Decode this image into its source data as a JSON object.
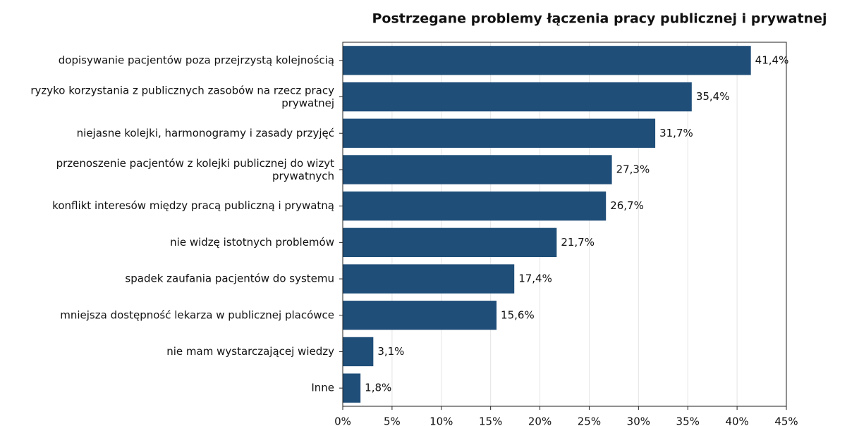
{
  "chart_data": {
    "type": "barh",
    "title": "Postrzegane problemy łączenia pracy publicznej i prywatnej",
    "categories": [
      "dopisywanie pacjentów poza przejrzystą kolejnością",
      "ryzyko korzystania z publicznych zasobów na rzecz pracy\nprywatnej",
      "niejasne kolejki, harmonogramy i zasady przyjęć",
      "przenoszenie pacjentów z kolejki publicznej do wizyt\nprywatnych",
      "konflikt interesów między pracą publiczną i prywatną",
      "nie widzę istotnych problemów",
      "spadek zaufania pacjentów do systemu",
      "mniejsza dostępność lekarza w publicznej placówce",
      "nie mam wystarczającej wiedzy",
      "Inne"
    ],
    "values": [
      41.4,
      35.4,
      31.7,
      27.3,
      26.7,
      21.7,
      17.4,
      15.6,
      3.1,
      1.8
    ],
    "value_labels": [
      "41,4%",
      "35,4%",
      "31,7%",
      "27,3%",
      "26,7%",
      "21,7%",
      "17,4%",
      "15,6%",
      "3,1%",
      "1,8%"
    ],
    "color": "#1f4e79",
    "xlim": [
      0,
      45
    ],
    "xticks": [
      {
        "value": 0,
        "label": "0%"
      },
      {
        "value": 5,
        "label": "5%"
      },
      {
        "value": 10,
        "label": "10%"
      },
      {
        "value": 15,
        "label": "15%"
      },
      {
        "value": 20,
        "label": "20%"
      },
      {
        "value": 25,
        "label": "25%"
      },
      {
        "value": 30,
        "label": "30%"
      },
      {
        "value": 35,
        "label": "35%"
      },
      {
        "value": 40,
        "label": "40%"
      },
      {
        "value": 45,
        "label": "45%"
      }
    ],
    "grid": true
  }
}
